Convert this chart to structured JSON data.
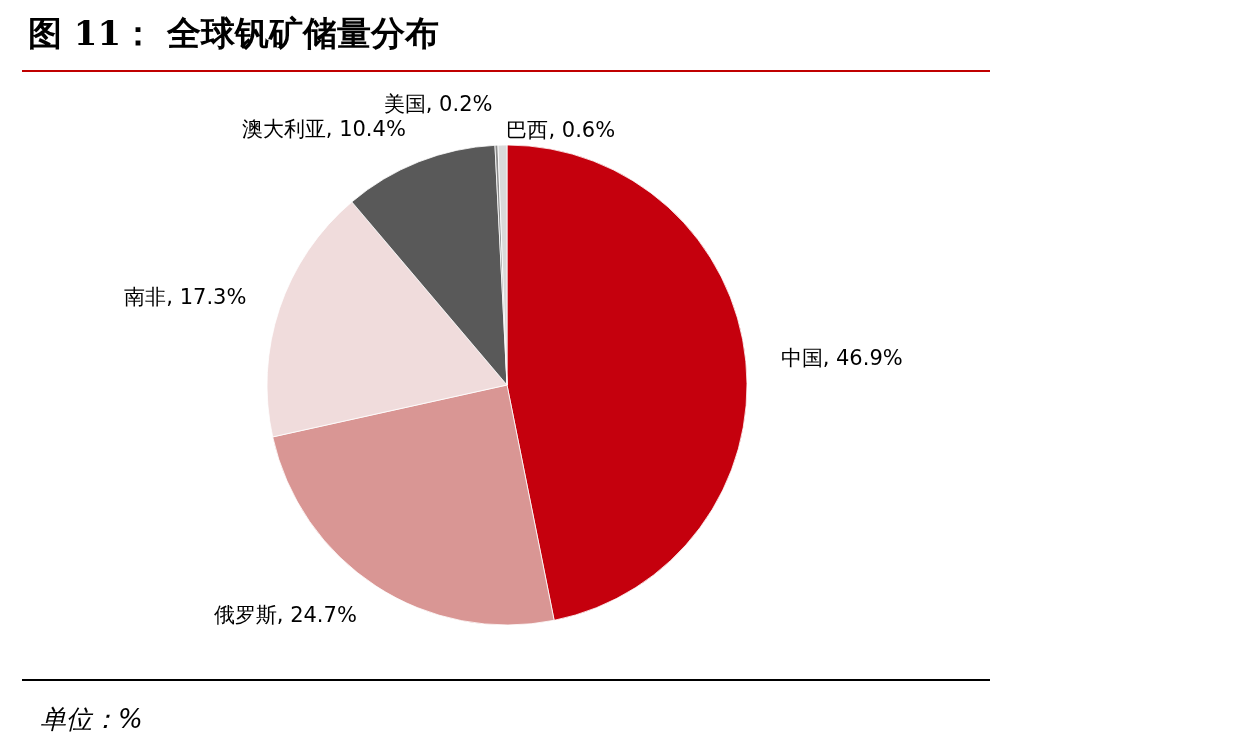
{
  "chart_data": {
    "type": "pie",
    "title": "图 11： 全球钒矿储量分布",
    "categories": [
      "中国",
      "俄罗斯",
      "南非",
      "澳大利亚",
      "美国",
      "巴西"
    ],
    "values": [
      46.9,
      24.7,
      17.3,
      10.4,
      0.2,
      0.6
    ],
    "colors": [
      "#c5000d",
      "#d99694",
      "#f0dcdc",
      "#595959",
      "#8c8c8c",
      "#d9d9d9"
    ],
    "value_labels": [
      ", 46.9%",
      ", 24.7%",
      ", 17.3%",
      ", 10.4%",
      ", 0.2%",
      ", 0.6%"
    ],
    "annotations": [
      "单位：%"
    ]
  }
}
